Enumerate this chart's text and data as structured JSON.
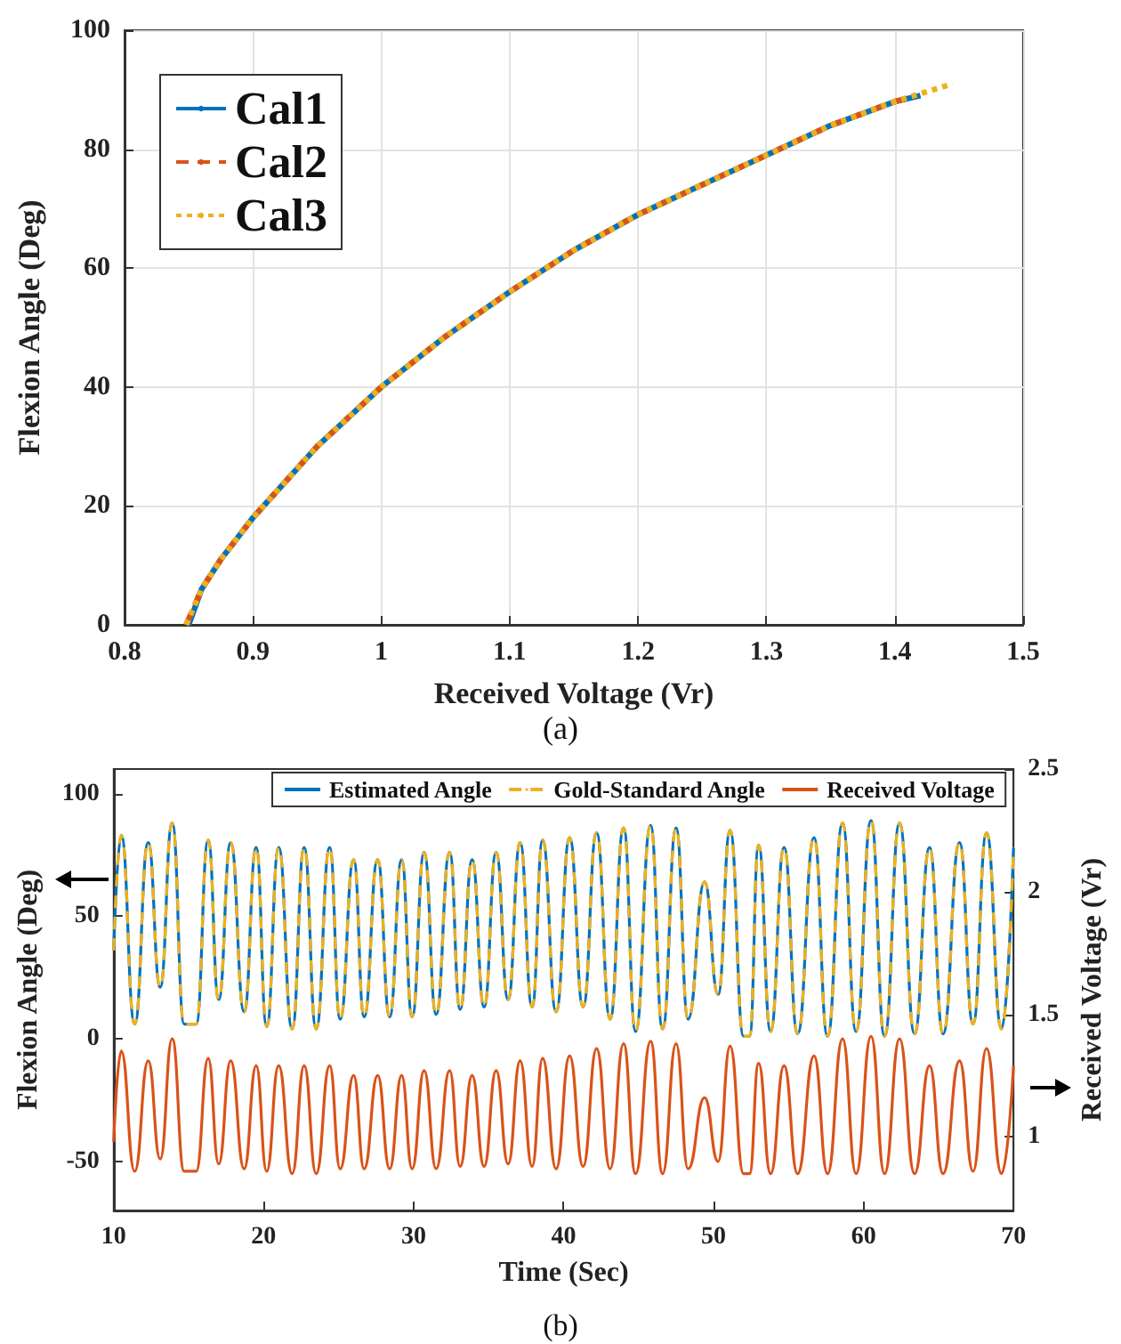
{
  "chart_data": [
    {
      "type": "line",
      "xlabel": "Received Voltage (Vr)",
      "ylabel": "Flexion Angle (Deg)",
      "annotations": [
        "(a)"
      ],
      "xlim": [
        0.8,
        1.5
      ],
      "xticks": [
        0.8,
        0.9,
        1,
        1.1,
        1.2,
        1.3,
        1.4,
        1.5
      ],
      "ylim": [
        0,
        100
      ],
      "yticks": [
        0,
        20,
        40,
        60,
        80,
        100
      ],
      "grid": true,
      "legend": "top left",
      "series": [
        {
          "name": "Cal1",
          "color": "#0072bd",
          "line_style": "solid",
          "x": [
            0.85,
            0.86,
            0.875,
            0.9,
            0.95,
            1.0,
            1.05,
            1.1,
            1.15,
            1.2,
            1.25,
            1.3,
            1.35,
            1.4,
            1.42
          ],
          "values": [
            0,
            6,
            11,
            18,
            30,
            40,
            48.5,
            56,
            63,
            69,
            74,
            79,
            84,
            88,
            89
          ]
        },
        {
          "name": "Cal2",
          "color": "#d95319",
          "line_style": "dashed",
          "x": [
            0.848,
            0.86,
            0.875,
            0.9,
            0.95,
            1.0,
            1.05,
            1.1,
            1.15,
            1.2,
            1.25,
            1.3,
            1.35,
            1.4,
            1.41
          ],
          "values": [
            0,
            6,
            11,
            18,
            30,
            40,
            48.5,
            56,
            63,
            69,
            74,
            79,
            84,
            88,
            88.5
          ]
        },
        {
          "name": "Cal3",
          "color": "#edb120",
          "line_style": "dotted",
          "x": [
            0.848,
            0.86,
            0.875,
            0.9,
            0.95,
            1.0,
            1.05,
            1.1,
            1.15,
            1.2,
            1.25,
            1.3,
            1.35,
            1.4,
            1.445
          ],
          "values": [
            0,
            6,
            11,
            18,
            30,
            40,
            48.5,
            56,
            63,
            69,
            74,
            79,
            84,
            88,
            91
          ]
        }
      ]
    },
    {
      "type": "line",
      "xlabel": "Time (Sec)",
      "ylabel": "Flexion Angle (Deg)",
      "y2label": "Received Voltage (Vr)",
      "annotations": [
        "(b)"
      ],
      "xlim": [
        10,
        70
      ],
      "xticks": [
        10,
        20,
        30,
        40,
        50,
        60,
        70
      ],
      "ylim": [
        -70,
        110
      ],
      "yticks": [
        -50,
        0,
        50,
        100
      ],
      "y2lim": [
        0.7,
        2.5
      ],
      "y2ticks": [
        1,
        1.5,
        2,
        2.5
      ],
      "grid": false,
      "legend": "top",
      "x": [
        10.0,
        10.5,
        11.4,
        12.3,
        13.1,
        13.9,
        14.7,
        15.5,
        16.3,
        17.0,
        17.8,
        18.7,
        19.5,
        20.2,
        21.0,
        21.9,
        22.7,
        23.5,
        24.4,
        25.1,
        26.0,
        26.7,
        27.6,
        28.4,
        29.2,
        29.9,
        30.7,
        31.5,
        32.4,
        33.1,
        33.9,
        34.7,
        35.5,
        36.3,
        37.1,
        37.9,
        38.6,
        39.5,
        40.4,
        41.3,
        42.2,
        43.1,
        44.0,
        44.8,
        45.8,
        46.6,
        47.5,
        48.3,
        49.4,
        50.3,
        51.1,
        52.0,
        52.4,
        53.0,
        53.8,
        54.7,
        55.6,
        56.7,
        57.6,
        58.6,
        59.5,
        60.5,
        61.4,
        62.4,
        63.4,
        64.4,
        65.3,
        66.4,
        67.3,
        68.2,
        69.2,
        70.0
      ],
      "series": [
        {
          "name": "Estimated Angle",
          "color": "#0072bd",
          "line_style": "solid",
          "values": [
            36,
            83,
            6,
            80,
            21,
            88,
            6,
            6,
            81,
            16,
            80,
            11,
            78,
            5,
            78,
            4,
            78,
            4,
            78,
            8,
            73,
            9,
            73,
            9,
            73,
            9,
            76,
            10,
            76,
            12,
            73,
            13,
            76,
            16,
            80,
            13,
            81,
            11,
            82,
            13,
            84,
            8,
            86,
            3,
            87,
            4,
            86,
            8,
            64,
            18,
            85,
            1,
            1,
            79,
            3,
            78,
            2,
            82,
            1,
            88,
            3,
            89,
            1,
            88,
            2,
            78,
            2,
            80,
            6,
            84,
            4,
            78
          ]
        },
        {
          "name": "Gold-Standard Angle",
          "color": "#edb120",
          "line_style": "dashed",
          "values": [
            36,
            83,
            6,
            80,
            21,
            88,
            6,
            6,
            81,
            16,
            80,
            11,
            78,
            5,
            78,
            4,
            78,
            4,
            78,
            8,
            73,
            9,
            73,
            9,
            73,
            9,
            76,
            10,
            76,
            12,
            73,
            13,
            76,
            16,
            80,
            13,
            81,
            11,
            82,
            13,
            84,
            8,
            86,
            3,
            87,
            4,
            86,
            8,
            64,
            18,
            85,
            1,
            1,
            79,
            3,
            78,
            2,
            82,
            1,
            88,
            3,
            89,
            1,
            88,
            2,
            78,
            2,
            80,
            6,
            84,
            4,
            78
          ]
        },
        {
          "name": "Received Voltage",
          "color": "#d95319",
          "line_style": "solid",
          "axis": "y2",
          "values": [
            0.98,
            1.35,
            0.86,
            1.31,
            0.91,
            1.4,
            0.86,
            0.86,
            1.32,
            0.89,
            1.31,
            0.87,
            1.29,
            0.86,
            1.29,
            0.85,
            1.29,
            0.85,
            1.29,
            0.87,
            1.25,
            0.87,
            1.25,
            0.87,
            1.25,
            0.87,
            1.27,
            0.87,
            1.27,
            0.88,
            1.25,
            0.88,
            1.27,
            0.89,
            1.31,
            0.88,
            1.32,
            0.87,
            1.33,
            0.88,
            1.36,
            0.87,
            1.38,
            0.85,
            1.39,
            0.85,
            1.38,
            0.87,
            1.16,
            0.9,
            1.37,
            0.85,
            0.85,
            1.3,
            0.85,
            1.29,
            0.85,
            1.33,
            0.85,
            1.4,
            0.85,
            1.41,
            0.85,
            1.4,
            0.85,
            1.29,
            0.85,
            1.31,
            0.86,
            1.36,
            0.85,
            1.29
          ]
        }
      ]
    }
  ]
}
